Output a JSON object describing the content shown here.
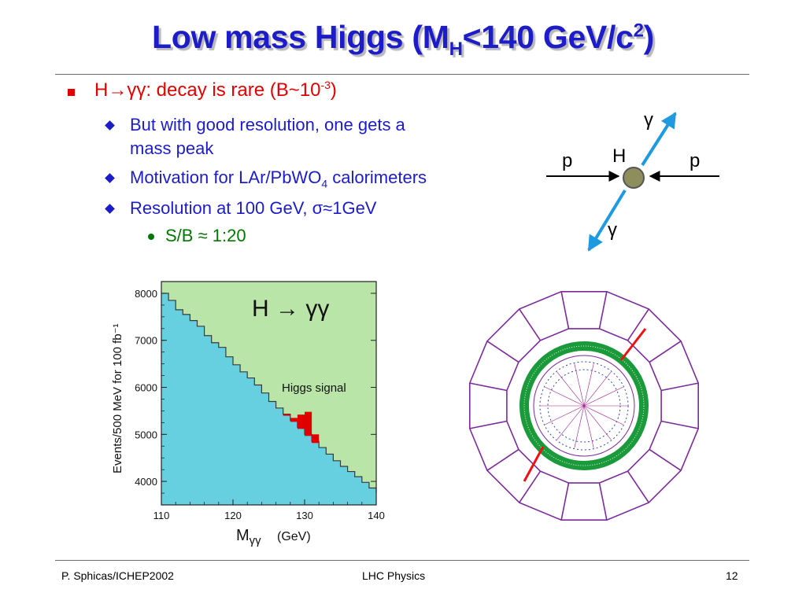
{
  "slide": {
    "title_main": "Low mass Higgs (M",
    "title_sub": "H",
    "title_mid": "<140 GeV/c",
    "title_sup": "2",
    "title_end": ")"
  },
  "bullets": {
    "b1_text": "H→γγ: decay is rare (B~10",
    "b1_sup": "-3",
    "b1_end": ")",
    "b2_1_line1": "But with good resolution, one gets a",
    "b2_1_line2": "mass peak",
    "b2_2_text": "Motivation for LAr/PbWO",
    "b2_2_sub": "4",
    "b2_2_end": " calorimeters",
    "b2_3_text": "Resolution at 100 GeV, σ≈1GeV",
    "b3_text": "S/B ≈ 1:20"
  },
  "diagram": {
    "gamma_top": "γ",
    "gamma_bottom": "γ",
    "p_left": "p",
    "p_right": "p",
    "H": "H",
    "colors": {
      "photon": "#1e9be0",
      "higgs": "#8e8e5c",
      "arrow": "#000000"
    }
  },
  "chart_data": {
    "type": "area",
    "title": "H → γγ",
    "annotation": "Higgs  signal",
    "xlabel_main": "M",
    "xlabel_sub": "γγ",
    "xlabel_unit": "(GeV)",
    "ylabel": "Events/500 MeV for 100 fb⁻¹",
    "xlim": [
      110,
      140
    ],
    "ylim": [
      3500,
      8250
    ],
    "xticks": [
      110,
      120,
      130,
      140
    ],
    "yticks": [
      4000,
      5000,
      6000,
      7000,
      8000
    ],
    "background": {
      "x": [
        110,
        111,
        112,
        113,
        114,
        115,
        116,
        117,
        118,
        119,
        120,
        121,
        122,
        123,
        124,
        125,
        126,
        127,
        128,
        129,
        130,
        131,
        132,
        133,
        134,
        135,
        136,
        137,
        138,
        139,
        140
      ],
      "y": [
        8000,
        7850,
        7650,
        7550,
        7420,
        7300,
        7100,
        6950,
        6850,
        6650,
        6480,
        6330,
        6200,
        6050,
        5880,
        5700,
        5560,
        5430,
        5300,
        5150,
        5000,
        4850,
        4720,
        4580,
        4440,
        4320,
        4210,
        4100,
        3980,
        3860,
        3760
      ]
    },
    "signal": {
      "x": [
        127,
        128,
        129,
        130,
        131
      ],
      "y": [
        5430,
        5350,
        5420,
        5480,
        5000
      ]
    },
    "colors": {
      "background": "#66cfe0",
      "total": "#b9e6a8",
      "signal": "#e00000"
    }
  },
  "footer": {
    "left": "P. Sphicas/ICHEP2002",
    "center": "LHC Physics",
    "right": "12"
  }
}
